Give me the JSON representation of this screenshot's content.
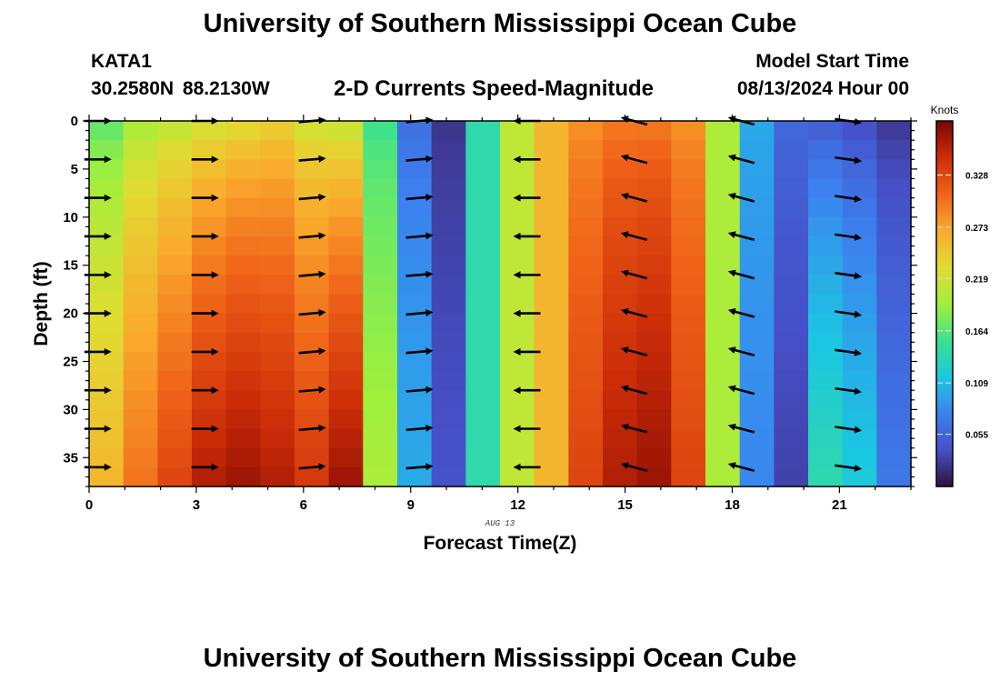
{
  "header": {
    "title": "University of Southern Mississippi Ocean Cube",
    "station": "KATA1",
    "coordinates": "30.2580N  88.2130W",
    "subtitle": "2-D Currents Speed-Magnitude",
    "model_start_label": "Model Start Time",
    "model_start_value": "08/13/2024 Hour 00"
  },
  "footer": {
    "title": "University of Southern Mississippi Ocean Cube"
  },
  "chart_data": {
    "type": "heatmap",
    "title": "2-D Currents Speed-Magnitude",
    "xlabel": "Forecast Time(Z)",
    "ylabel": "Depth (ft)",
    "date_annotation": "AUG 13",
    "xlim": [
      0,
      23
    ],
    "ylim": [
      38,
      0
    ],
    "x_ticks": [
      0,
      3,
      6,
      9,
      12,
      15,
      18,
      21
    ],
    "y_ticks": [
      0,
      5,
      10,
      15,
      20,
      25,
      30,
      35
    ],
    "colorbar": {
      "label": "Knots",
      "range": [
        0.0,
        0.385
      ],
      "ticks": [
        "0.055",
        "0.109",
        "0.164",
        "0.219",
        "0.273",
        "0.328"
      ]
    },
    "hours": [
      0,
      1,
      2,
      3,
      4,
      5,
      6,
      7,
      8,
      9,
      10,
      11,
      12,
      13,
      14,
      15,
      16,
      17,
      18,
      19,
      20,
      21,
      22,
      23
    ],
    "depths_ft": [
      0,
      2,
      4,
      6,
      8,
      10,
      12,
      14,
      16,
      18,
      20,
      22,
      24,
      26,
      28,
      30,
      32,
      34,
      36,
      38
    ],
    "speed_profile": {
      "surface": [
        0.16,
        0.19,
        0.2,
        0.21,
        0.22,
        0.23,
        0.21,
        0.2,
        0.15,
        0.06,
        0.02,
        0.14,
        0.21,
        0.26,
        0.28,
        0.29,
        0.29,
        0.28,
        0.2,
        0.1,
        0.06,
        0.04,
        0.03,
        0.02
      ],
      "bottom": [
        0.26,
        0.3,
        0.33,
        0.36,
        0.37,
        0.36,
        0.34,
        0.37,
        0.2,
        0.1,
        0.04,
        0.14,
        0.21,
        0.26,
        0.33,
        0.36,
        0.37,
        0.33,
        0.2,
        0.08,
        0.03,
        0.14,
        0.12,
        0.07
      ]
    },
    "vectors": {
      "hours": [
        0,
        3,
        6,
        9,
        12,
        15,
        18,
        21
      ],
      "depths_ft": [
        0,
        4,
        8,
        12,
        16,
        20,
        24,
        28,
        32,
        36
      ],
      "direction_deg_math": [
        0,
        0,
        5,
        5,
        180,
        165,
        165,
        -8
      ],
      "direction_note": "0 = toward east (right), 180 = toward west (left); positive tilts upward"
    }
  }
}
